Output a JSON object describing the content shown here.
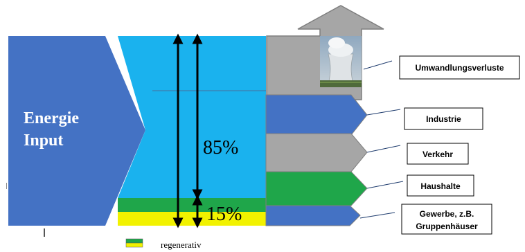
{
  "input": {
    "line1": "Energie",
    "line2": "Input"
  },
  "shares": {
    "fossil_pct": "85%",
    "renewable_pct": "15%"
  },
  "outputs": [
    {
      "label_lines": [
        "Umwandlungsverluste"
      ]
    },
    {
      "label_lines": [
        "Industrie"
      ]
    },
    {
      "label_lines": [
        "Verkehr"
      ]
    },
    {
      "label_lines": [
        "Haushalte"
      ]
    },
    {
      "label_lines": [
        "Gewerbe, z.B.",
        "Gruppenhäuser"
      ]
    }
  ],
  "legend": {
    "label": "regenerativ"
  },
  "colors": {
    "input_blue": "#4472c4",
    "fossil_cyan": "#1ab2ee",
    "renewable_green": "#1fa64a",
    "renewable_yellow": "#f2f200",
    "loss_gray": "#a6a6a6",
    "haushalte_green": "#1fa64a"
  }
}
